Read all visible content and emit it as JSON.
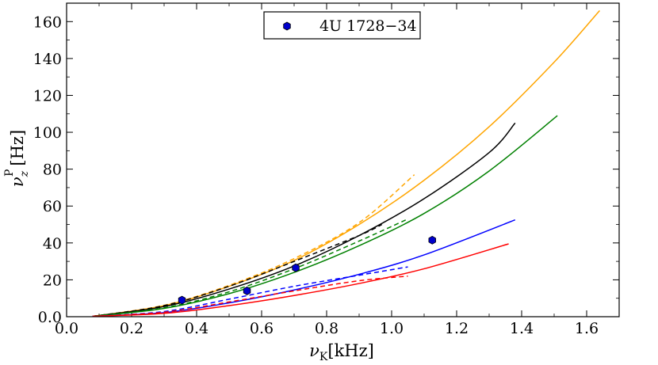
{
  "chart_data": {
    "type": "line",
    "title": "",
    "xlabel": "ν_K [kHz]",
    "ylabel": "ν_z^P [Hz]",
    "xlabel_parts": {
      "nu": "ν",
      "sub": "K",
      "unit": "[kHz]"
    },
    "ylabel_parts": {
      "nu": "ν",
      "sub": "z",
      "sup": "P",
      "unit": "[Hz]"
    },
    "xlim": [
      0.0,
      1.7
    ],
    "ylim": [
      0,
      170
    ],
    "x_ticks": [
      0.0,
      0.2,
      0.4,
      0.6,
      0.8,
      1.0,
      1.2,
      1.4,
      1.6
    ],
    "x_tick_labels": [
      "0.0",
      "0.2",
      "0.4",
      "0.6",
      "0.8",
      "1.0",
      "1.2",
      "1.4",
      "1.6"
    ],
    "y_ticks": [
      0,
      20,
      40,
      60,
      80,
      100,
      120,
      140,
      160
    ],
    "y_tick_labels": [
      "0.0",
      "20",
      "40",
      "60",
      "80",
      "100",
      "120",
      "140",
      "160"
    ],
    "legend": {
      "label": "4U 1728−34",
      "location": "top-center"
    },
    "scatter": {
      "name": "4U 1728−34",
      "color": "#0000cc",
      "x": [
        0.355,
        0.555,
        0.705,
        1.125
      ],
      "y": [
        9,
        14,
        26.5,
        41.5
      ]
    },
    "series": [
      {
        "name": "orange-solid",
        "color": "#ffa500",
        "style": "solid",
        "x": [
          0.08,
          0.3,
          0.5,
          0.7,
          0.9,
          1.1,
          1.3,
          1.5,
          1.64
        ],
        "y": [
          0.2,
          6,
          16.5,
          30.5,
          50,
          74,
          103,
          138,
          166
        ]
      },
      {
        "name": "orange-dashed",
        "color": "#ffa500",
        "style": "dashed",
        "x": [
          0.08,
          0.3,
          0.5,
          0.7,
          0.9,
          1.07
        ],
        "y": [
          0.2,
          6.2,
          17,
          31.5,
          51,
          77
        ]
      },
      {
        "name": "black-solid",
        "color": "#000000",
        "style": "solid",
        "x": [
          0.08,
          0.3,
          0.5,
          0.7,
          0.9,
          1.1,
          1.3,
          1.38
        ],
        "y": [
          0.2,
          5.5,
          15,
          27.5,
          44,
          64,
          89,
          105
        ]
      },
      {
        "name": "black-dashed",
        "color": "#000000",
        "style": "dashed",
        "x": [
          0.08,
          0.3,
          0.5,
          0.7,
          0.9,
          0.97
        ],
        "y": [
          0.2,
          6,
          16.5,
          30,
          44,
          50
        ]
      },
      {
        "name": "green-solid",
        "color": "#008000",
        "style": "solid",
        "x": [
          0.08,
          0.3,
          0.5,
          0.7,
          0.9,
          1.1,
          1.3,
          1.51
        ],
        "y": [
          0.2,
          4.5,
          12.5,
          24,
          38.5,
          56,
          79,
          109
        ]
      },
      {
        "name": "green-dashed",
        "color": "#008000",
        "style": "dashed",
        "x": [
          0.08,
          0.3,
          0.5,
          0.7,
          0.9,
          1.05
        ],
        "y": [
          0.2,
          4.8,
          13.5,
          26,
          41,
          53
        ]
      },
      {
        "name": "blue-solid",
        "color": "#0000ff",
        "style": "solid",
        "x": [
          0.08,
          0.3,
          0.5,
          0.7,
          0.9,
          1.1,
          1.38
        ],
        "y": [
          0.2,
          2.2,
          7.5,
          14.5,
          23,
          33.5,
          52.5
        ]
      },
      {
        "name": "blue-dashed",
        "color": "#0000ff",
        "style": "dashed",
        "x": [
          0.08,
          0.3,
          0.5,
          0.7,
          0.9,
          1.05
        ],
        "y": [
          0.2,
          2.8,
          9.5,
          16.5,
          22.5,
          27
        ]
      },
      {
        "name": "red-solid",
        "color": "#ff0000",
        "style": "solid",
        "x": [
          0.08,
          0.3,
          0.5,
          0.7,
          0.9,
          1.1,
          1.36
        ],
        "y": [
          0.2,
          1.8,
          6,
          11.5,
          18,
          26,
          39.5
        ]
      },
      {
        "name": "red-dashed",
        "color": "#ff0000",
        "style": "dashed",
        "x": [
          0.08,
          0.3,
          0.5,
          0.7,
          0.9,
          1.05
        ],
        "y": [
          0.2,
          2.4,
          8,
          14,
          19.5,
          22
        ]
      }
    ]
  }
}
